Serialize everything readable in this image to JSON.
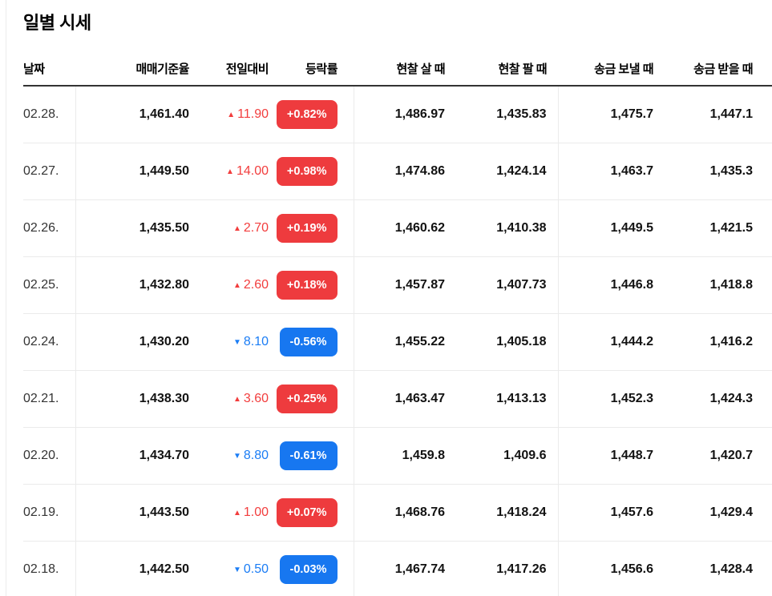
{
  "page": {
    "title": "일별 시세"
  },
  "icons": {
    "up": "▲",
    "down": "▼"
  },
  "colors": {
    "up_badge_red": "#ee3b3e",
    "up_text_red": "#f23d3d",
    "down_badge_blue": "#1777f0",
    "down_text_blue": "#1b7df5",
    "header_rule": "#333333",
    "row_divider": "#ebebeb"
  },
  "table": {
    "columns": [
      {
        "id": "date",
        "label": "날짜"
      },
      {
        "id": "base_rate",
        "label": "매매기준율"
      },
      {
        "id": "change",
        "label": "전일대비"
      },
      {
        "id": "change_pct",
        "label": "등락률"
      },
      {
        "id": "cash_buy",
        "label": "현찰 살 때"
      },
      {
        "id": "cash_sell",
        "label": "현찰 팔 때"
      },
      {
        "id": "remit_send",
        "label": "송금 보낼 때"
      },
      {
        "id": "remit_receive",
        "label": "송금 받을 때"
      }
    ],
    "rows": [
      {
        "date": "02.28.",
        "base_rate": "1,461.40",
        "direction": "up",
        "change_value": "11.90",
        "change_pct": "+0.82%",
        "cash_buy": "1,486.97",
        "cash_sell": "1,435.83",
        "remit_send": "1,475.7",
        "remit_receive": "1,447.1"
      },
      {
        "date": "02.27.",
        "base_rate": "1,449.50",
        "direction": "up",
        "change_value": "14.00",
        "change_pct": "+0.98%",
        "cash_buy": "1,474.86",
        "cash_sell": "1,424.14",
        "remit_send": "1,463.7",
        "remit_receive": "1,435.3"
      },
      {
        "date": "02.26.",
        "base_rate": "1,435.50",
        "direction": "up",
        "change_value": "2.70",
        "change_pct": "+0.19%",
        "cash_buy": "1,460.62",
        "cash_sell": "1,410.38",
        "remit_send": "1,449.5",
        "remit_receive": "1,421.5"
      },
      {
        "date": "02.25.",
        "base_rate": "1,432.80",
        "direction": "up",
        "change_value": "2.60",
        "change_pct": "+0.18%",
        "cash_buy": "1,457.87",
        "cash_sell": "1,407.73",
        "remit_send": "1,446.8",
        "remit_receive": "1,418.8"
      },
      {
        "date": "02.24.",
        "base_rate": "1,430.20",
        "direction": "down",
        "change_value": "8.10",
        "change_pct": "-0.56%",
        "cash_buy": "1,455.22",
        "cash_sell": "1,405.18",
        "remit_send": "1,444.2",
        "remit_receive": "1,416.2"
      },
      {
        "date": "02.21.",
        "base_rate": "1,438.30",
        "direction": "up",
        "change_value": "3.60",
        "change_pct": "+0.25%",
        "cash_buy": "1,463.47",
        "cash_sell": "1,413.13",
        "remit_send": "1,452.3",
        "remit_receive": "1,424.3"
      },
      {
        "date": "02.20.",
        "base_rate": "1,434.70",
        "direction": "down",
        "change_value": "8.80",
        "change_pct": "-0.61%",
        "cash_buy": "1,459.8",
        "cash_sell": "1,409.6",
        "remit_send": "1,448.7",
        "remit_receive": "1,420.7"
      },
      {
        "date": "02.19.",
        "base_rate": "1,443.50",
        "direction": "up",
        "change_value": "1.00",
        "change_pct": "+0.07%",
        "cash_buy": "1,468.76",
        "cash_sell": "1,418.24",
        "remit_send": "1,457.6",
        "remit_receive": "1,429.4"
      },
      {
        "date": "02.18.",
        "base_rate": "1,442.50",
        "direction": "down",
        "change_value": "0.50",
        "change_pct": "-0.03%",
        "cash_buy": "1,467.74",
        "cash_sell": "1,417.26",
        "remit_send": "1,456.6",
        "remit_receive": "1,428.4"
      }
    ]
  }
}
